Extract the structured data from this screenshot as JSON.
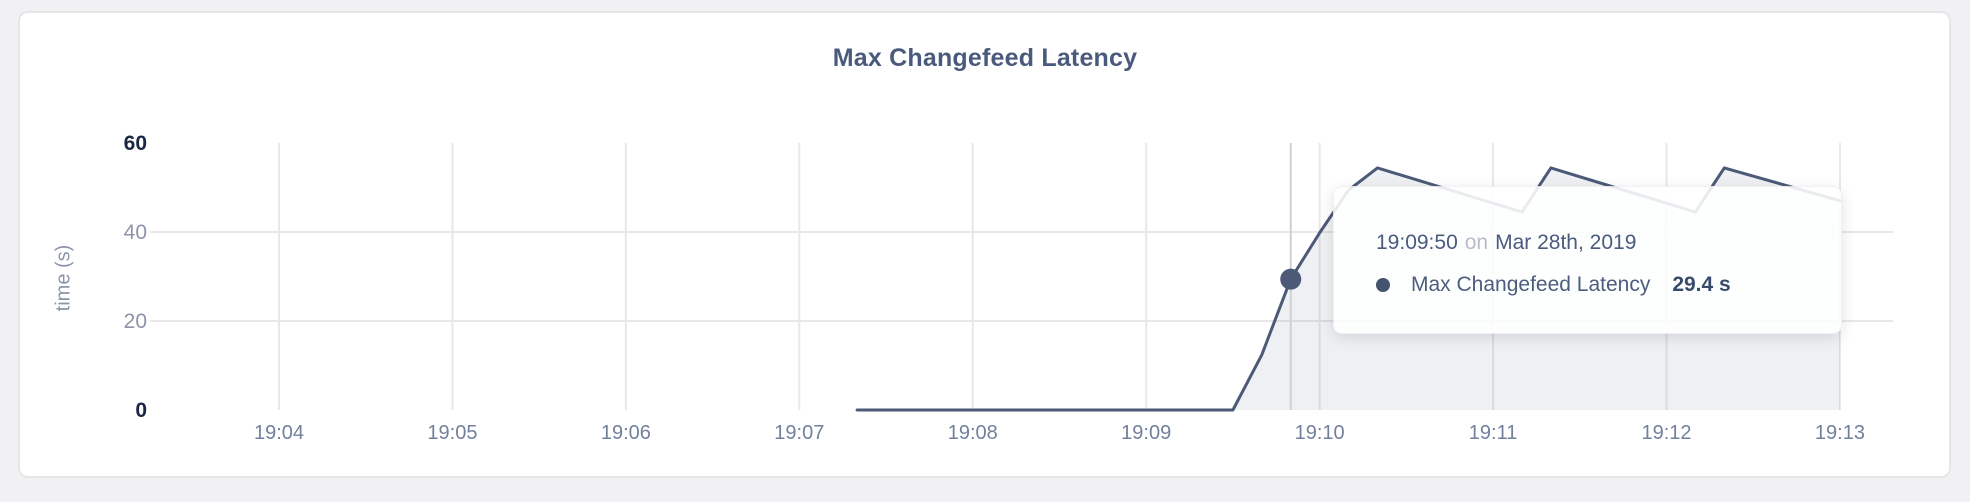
{
  "page": {
    "background": "#f1f1f3"
  },
  "card": {
    "background": "#ffffff",
    "border_color": "#e6e6e8"
  },
  "chart": {
    "title": "Max Changefeed Latency",
    "y_axis_title": "time (s)"
  },
  "tooltip": {
    "time": "19:09:50",
    "on_word": "on",
    "date": "Mar 28th, 2019",
    "series_label": "Max Changefeed Latency",
    "value": "29.4 s"
  },
  "chart_data": {
    "type": "area",
    "title": "Max Changefeed Latency",
    "xlabel": "",
    "ylabel": "time (s)",
    "x_tick_labels": [
      "19:04",
      "19:05",
      "19:06",
      "19:07",
      "19:08",
      "19:09",
      "19:10",
      "19:11",
      "19:12",
      "19:13"
    ],
    "y_ticks": [
      0,
      20,
      40,
      60
    ],
    "ylim": [
      0,
      60
    ],
    "grid": true,
    "legend_position": "none",
    "series": [
      {
        "name": "Max Changefeed Latency",
        "points": [
          [
            "19:07:20",
            0
          ],
          [
            "19:09:30",
            0
          ],
          [
            "19:09:40",
            12.4
          ],
          [
            "19:09:50",
            29.4
          ],
          [
            "19:10:00",
            39.8
          ],
          [
            "19:10:10",
            49.4
          ],
          [
            "19:10:20",
            54.4
          ],
          [
            "19:11:10",
            44.5
          ],
          [
            "19:11:20",
            54.4
          ],
          [
            "19:12:10",
            44.5
          ],
          [
            "19:12:20",
            54.4
          ],
          [
            "19:13:00",
            47.0
          ]
        ]
      }
    ],
    "hover": {
      "x": "19:09:50",
      "y": 29.4
    }
  },
  "colors": {
    "line": "#4c5a77",
    "area_fill": "rgba(77,91,120,0.09)",
    "gridline": "#e8e8ea",
    "crosshair": "#cfd0d4",
    "tick_dark": "#1a2744",
    "tick_light": "#8b95a9",
    "x_tick": "#72809c",
    "hover_point": "#4c5a77"
  }
}
